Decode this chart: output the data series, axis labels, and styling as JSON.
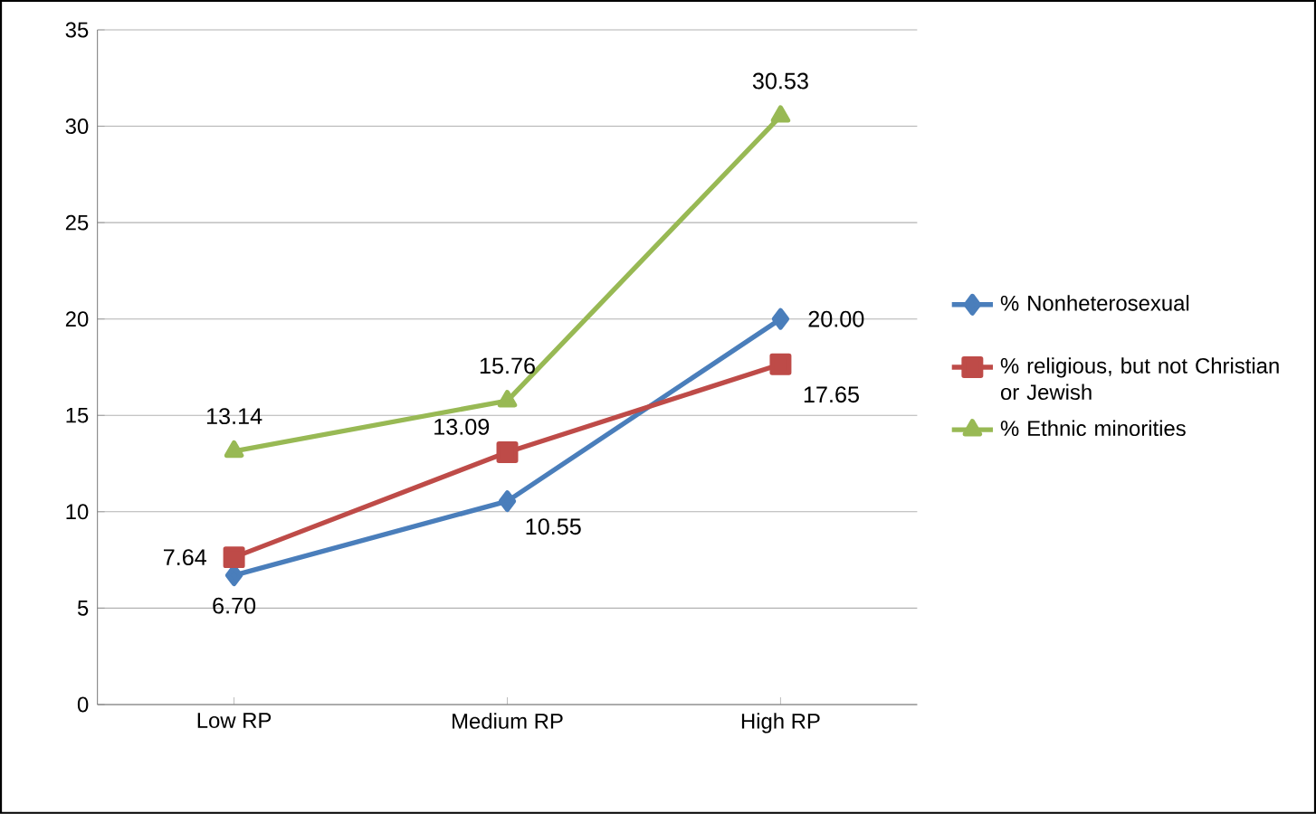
{
  "chart_data": {
    "type": "line",
    "categories": [
      "Low RP",
      "Medium RP",
      "High RP"
    ],
    "series": [
      {
        "name": "% Nonheterosexual",
        "color": "#4a7ebb",
        "marker": "diamond",
        "values": [
          6.7,
          10.55,
          20.0
        ],
        "value_labels": [
          "6.70",
          "10.55",
          "20.00"
        ]
      },
      {
        "name": "% religious, but not Christian or Jewish",
        "color": "#be4b48",
        "marker": "square",
        "values": [
          7.64,
          13.09,
          17.65
        ],
        "value_labels": [
          "7.64",
          "13.09",
          "17.65"
        ]
      },
      {
        "name": "% Ethnic minorities",
        "color": "#98b954",
        "marker": "triangle",
        "values": [
          13.14,
          15.76,
          30.53
        ],
        "value_labels": [
          "13.14",
          "15.76",
          "30.53"
        ]
      }
    ],
    "ylim": [
      0,
      35
    ],
    "yticks": [
      0,
      5,
      10,
      15,
      20,
      25,
      30,
      35
    ],
    "grid": "y",
    "legend": "right"
  }
}
